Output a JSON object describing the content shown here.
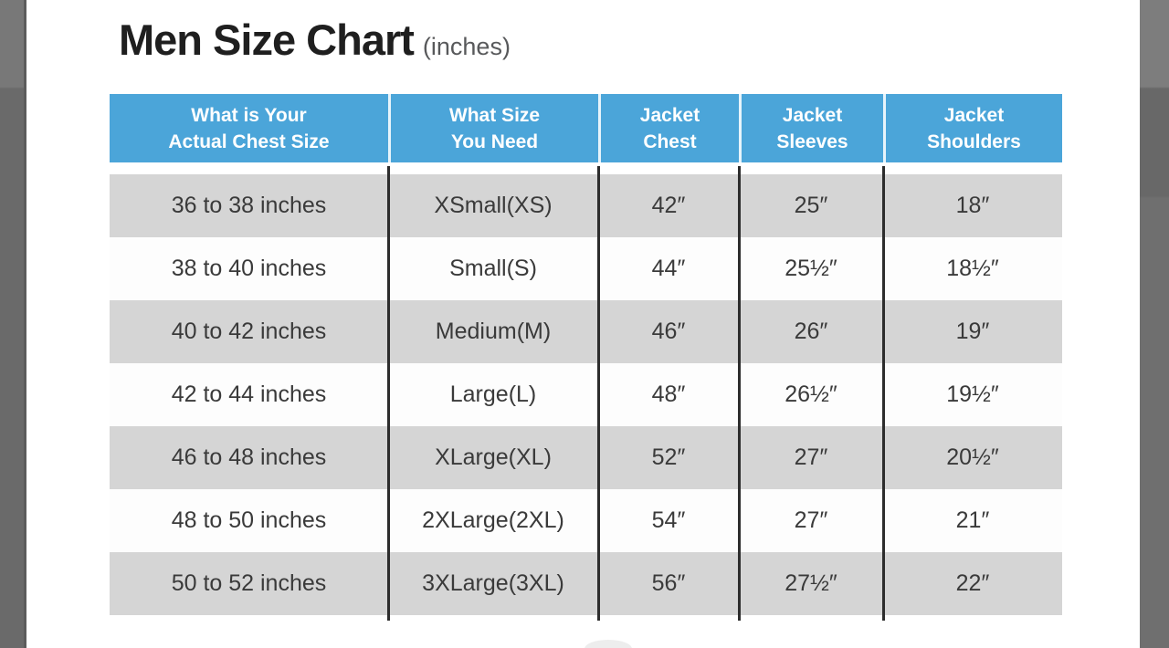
{
  "title": {
    "main": "Men Size Chart",
    "units": "(inches)"
  },
  "table": {
    "headers": [
      "What is Your\nActual Chest Size",
      "What Size\nYou Need",
      "Jacket\nChest",
      "Jacket\nSleeves",
      "Jacket\nShoulders"
    ],
    "rows": [
      {
        "chest_range": "36 to 38 inches",
        "size": "XSmall(XS)",
        "jacket_chest": "42″",
        "jacket_sleeves": "25″",
        "jacket_shoulders": "18″"
      },
      {
        "chest_range": "38 to 40 inches",
        "size": "Small(S)",
        "jacket_chest": "44″",
        "jacket_sleeves": "25½″",
        "jacket_shoulders": "18½″"
      },
      {
        "chest_range": "40 to 42 inches",
        "size": "Medium(M)",
        "jacket_chest": "46″",
        "jacket_sleeves": "26″",
        "jacket_shoulders": "19″"
      },
      {
        "chest_range": "42 to 44 inches",
        "size": "Large(L)",
        "jacket_chest": "48″",
        "jacket_sleeves": "26½″",
        "jacket_shoulders": "19½″"
      },
      {
        "chest_range": "46 to 48 inches",
        "size": "XLarge(XL)",
        "jacket_chest": "52″",
        "jacket_sleeves": "27″",
        "jacket_shoulders": "20½″"
      },
      {
        "chest_range": "48 to 50 inches",
        "size": "2XLarge(2XL)",
        "jacket_chest": "54″",
        "jacket_sleeves": "27″",
        "jacket_shoulders": "21″"
      },
      {
        "chest_range": "50 to 52 inches",
        "size": "3XLarge(3XL)",
        "jacket_chest": "56″",
        "jacket_sleeves": "27½″",
        "jacket_shoulders": "22″"
      }
    ]
  },
  "chart_data": {
    "type": "table",
    "title": "Men Size Chart (inches)",
    "columns": [
      "What is Your Actual Chest Size",
      "What Size You Need",
      "Jacket Chest",
      "Jacket Sleeves",
      "Jacket Shoulders"
    ],
    "rows": [
      [
        "36 to 38 inches",
        "XSmall(XS)",
        42,
        25,
        18
      ],
      [
        "38 to 40 inches",
        "Small(S)",
        44,
        25.5,
        18.5
      ],
      [
        "40 to 42 inches",
        "Medium(M)",
        46,
        26,
        19
      ],
      [
        "42 to 44 inches",
        "Large(L)",
        48,
        26.5,
        19.5
      ],
      [
        "46 to 48 inches",
        "XLarge(XL)",
        52,
        27,
        20.5
      ],
      [
        "48 to 50 inches",
        "2XLarge(2XL)",
        54,
        27,
        21
      ],
      [
        "50 to 52 inches",
        "3XLarge(3XL)",
        56,
        27.5,
        22
      ]
    ],
    "units": "inches"
  },
  "colors": {
    "accent_blue": "#4ba5d9",
    "row_gray": "#d5d5d5",
    "divider_black": "#2d2d2d",
    "side_strip_gray": "#6e6e6e"
  }
}
